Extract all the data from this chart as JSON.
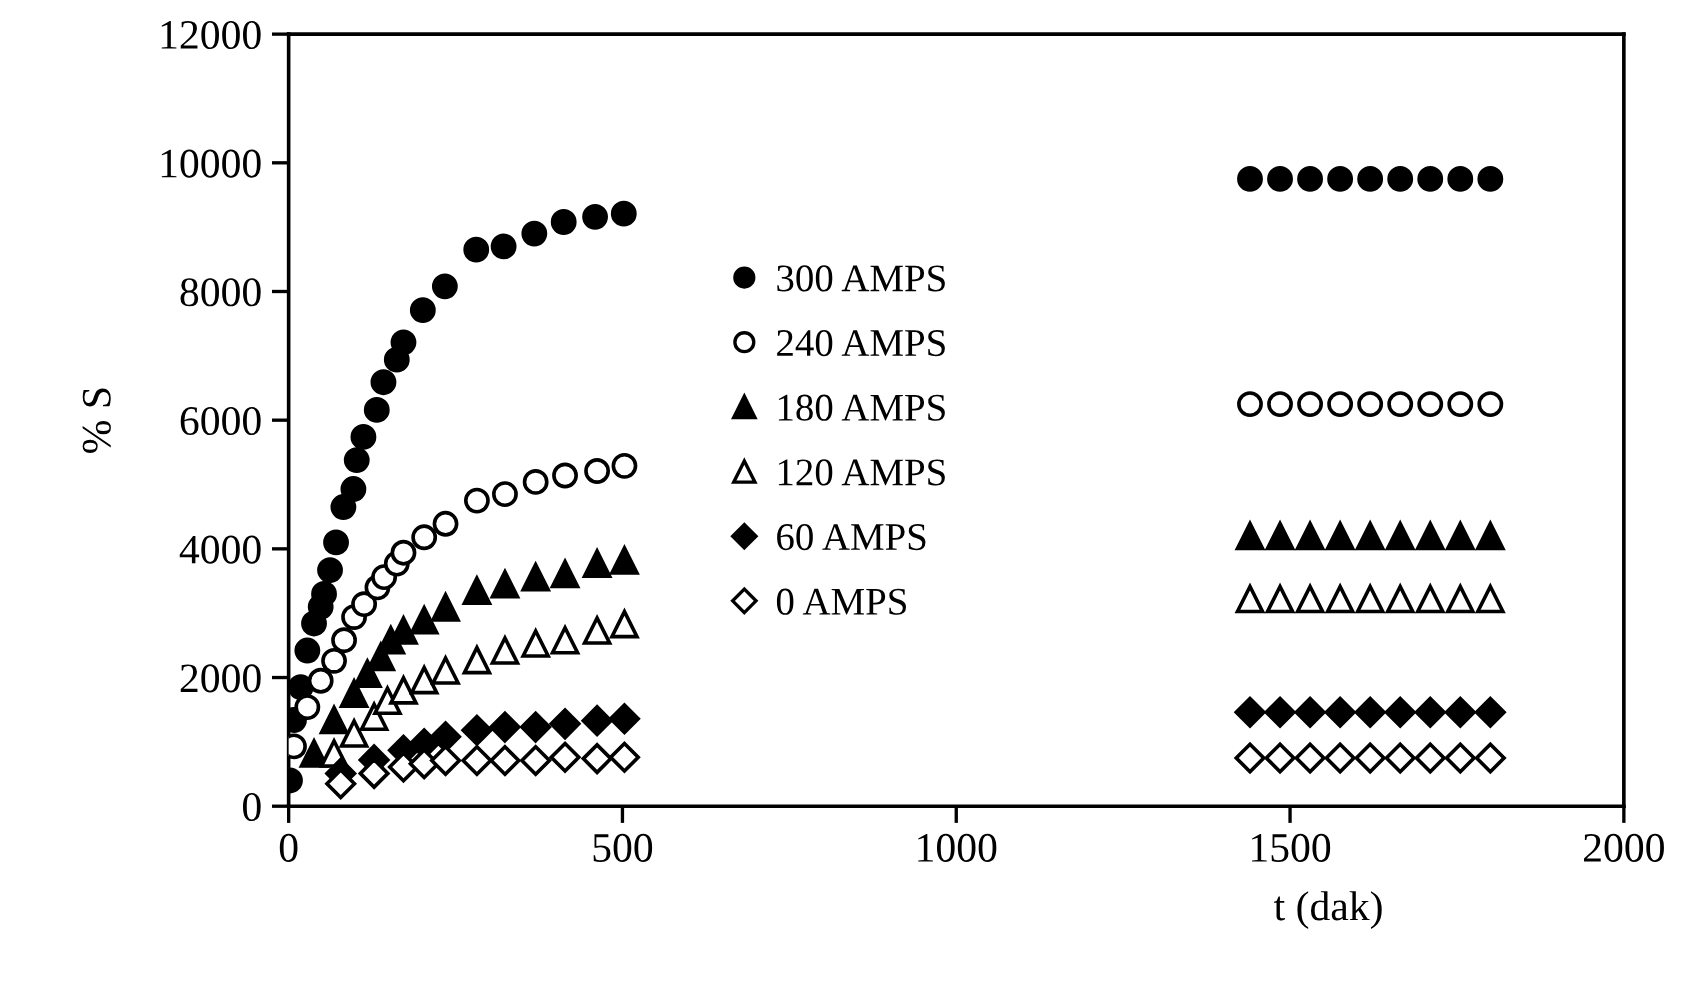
{
  "chart_data": {
    "type": "scatter",
    "xlabel": "t (dak)",
    "ylabel": "% S",
    "xlim": [
      0,
      2000
    ],
    "xticks": [
      0,
      500,
      1000,
      1500,
      2000
    ],
    "ylim": [
      0,
      12000
    ],
    "yticks": [
      0,
      2000,
      4000,
      6000,
      8000,
      10000,
      12000
    ],
    "grid": false,
    "legend": "center",
    "series": [
      {
        "name": "300 AMPS",
        "color": "#000000",
        "marker": "circle",
        "x": [
          2,
          8,
          18,
          28,
          38,
          48,
          53,
          62,
          71,
          82,
          97,
          102,
          112,
          132,
          142,
          162,
          172,
          201,
          234,
          281,
          322,
          368,
          412,
          459,
          502,
          1440,
          1485,
          1530,
          1575,
          1620,
          1665,
          1710,
          1755,
          1800
        ],
        "values": [
          400,
          1340,
          1850,
          2420,
          2840,
          3100,
          3300,
          3670,
          4100,
          4650,
          4930,
          5380,
          5740,
          6160,
          6590,
          6940,
          7210,
          7710,
          8080,
          8650,
          8700,
          8900,
          9080,
          9160,
          9210,
          9750,
          9750,
          9750,
          9750,
          9750,
          9750,
          9750,
          9750,
          9750
        ]
      },
      {
        "name": "240 AMPS",
        "color": "#ffffff",
        "marker": "circle",
        "x": [
          8,
          28,
          48,
          68,
          83,
          98,
          113,
          133,
          143,
          162,
          172,
          203,
          235,
          282,
          324,
          370,
          414,
          462,
          503,
          1440,
          1485,
          1530,
          1575,
          1620,
          1665,
          1710,
          1755,
          1800
        ],
        "values": [
          930,
          1540,
          1950,
          2260,
          2580,
          2940,
          3140,
          3400,
          3560,
          3770,
          3940,
          4180,
          4390,
          4750,
          4850,
          5040,
          5140,
          5210,
          5290,
          6250,
          6250,
          6250,
          6250,
          6250,
          6250,
          6250,
          6250,
          6250
        ]
      },
      {
        "name": "180 AMPS",
        "color": "#000000",
        "marker": "triangle",
        "x": [
          38,
          68,
          98,
          118,
          138,
          153,
          172,
          203,
          235,
          282,
          324,
          370,
          414,
          462,
          503,
          1440,
          1485,
          1530,
          1575,
          1620,
          1665,
          1710,
          1755,
          1800
        ],
        "values": [
          820,
          1340,
          1750,
          2060,
          2320,
          2580,
          2730,
          2890,
          3090,
          3350,
          3450,
          3560,
          3610,
          3770,
          3820,
          4200,
          4200,
          4200,
          4200,
          4200,
          4200,
          4200,
          4200,
          4200
        ]
      },
      {
        "name": "120 AMPS",
        "color": "#ffffff",
        "marker": "triangle",
        "x": [
          68,
          98,
          128,
          148,
          172,
          203,
          235,
          282,
          324,
          370,
          414,
          462,
          503,
          1440,
          1485,
          1530,
          1575,
          1620,
          1665,
          1710,
          1755,
          1800
        ],
        "values": [
          820,
          1130,
          1390,
          1640,
          1800,
          1960,
          2110,
          2270,
          2420,
          2530,
          2580,
          2730,
          2830,
          3220,
          3220,
          3220,
          3220,
          3220,
          3220,
          3220,
          3220,
          3220
        ]
      },
      {
        "name": "60 AMPS",
        "color": "#000000",
        "marker": "diamond",
        "x": [
          78,
          128,
          172,
          203,
          235,
          282,
          324,
          370,
          414,
          462,
          503,
          1440,
          1485,
          1530,
          1575,
          1620,
          1665,
          1710,
          1755,
          1800
        ],
        "values": [
          510,
          720,
          870,
          970,
          1080,
          1180,
          1230,
          1230,
          1280,
          1330,
          1360,
          1460,
          1460,
          1460,
          1460,
          1460,
          1460,
          1460,
          1460,
          1460
        ]
      },
      {
        "name": "0 AMPS",
        "color": "#ffffff",
        "marker": "diamond",
        "x": [
          78,
          128,
          172,
          203,
          235,
          282,
          324,
          370,
          414,
          462,
          503,
          1440,
          1485,
          1530,
          1575,
          1620,
          1665,
          1710,
          1755,
          1800
        ],
        "values": [
          350,
          510,
          610,
          660,
          710,
          710,
          710,
          710,
          760,
          740,
          760,
          750,
          750,
          750,
          750,
          750,
          750,
          750,
          750,
          750
        ]
      }
    ]
  }
}
